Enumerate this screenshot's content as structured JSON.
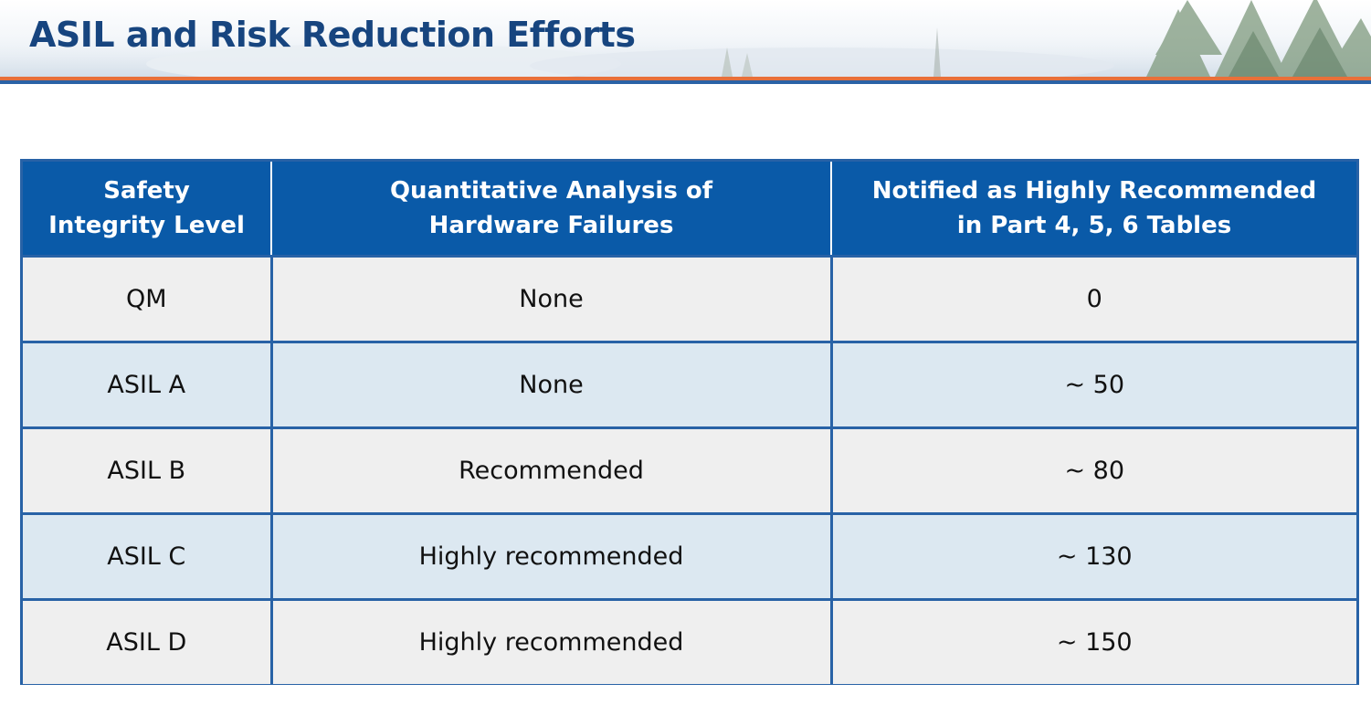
{
  "slide": {
    "title": "ASIL and Risk Reduction Efforts"
  },
  "colors": {
    "title": "#17457f",
    "header_fill": "#0a5aa8",
    "border": "#2862a6",
    "row_light": "#efefef",
    "row_blue": "#dce8f1",
    "accent_orange": "#e8703a"
  },
  "table": {
    "headers": [
      [
        "Safety",
        "Integrity Level"
      ],
      [
        "Quantitative Analysis of",
        "Hardware Failures"
      ],
      [
        "Notified as Highly Recommended",
        "in Part 4, 5, 6 Tables"
      ]
    ],
    "rows": [
      [
        "QM",
        "None",
        "0"
      ],
      [
        "ASIL A",
        "None",
        "~ 50"
      ],
      [
        "ASIL B",
        "Recommended",
        "~ 80"
      ],
      [
        "ASIL C",
        "Highly recommended",
        "~ 130"
      ],
      [
        "ASIL D",
        "Highly recommended",
        "~ 150"
      ]
    ]
  }
}
